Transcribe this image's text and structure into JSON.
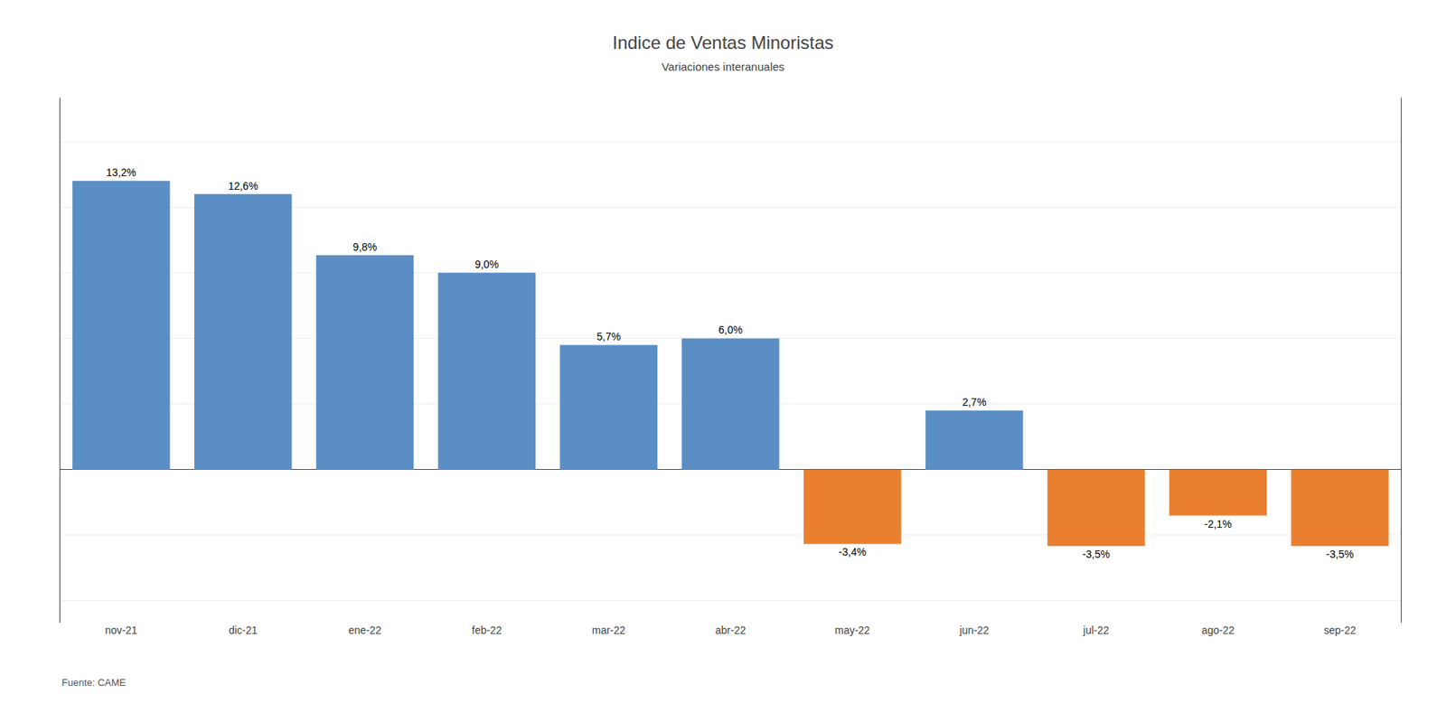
{
  "chart_data": {
    "type": "bar",
    "title": "Indice de Ventas Minoristas",
    "subtitle": "Variaciones interanuales",
    "annotations": [
      "Fuente: CAME"
    ],
    "categories": [
      "nov-21",
      "dic-21",
      "ene-22",
      "feb-22",
      "mar-22",
      "abr-22",
      "may-22",
      "jun-22",
      "jul-22",
      "ago-22",
      "sep-22"
    ],
    "values": [
      13.2,
      12.6,
      9.8,
      9.0,
      5.7,
      6.0,
      -3.4,
      2.7,
      -3.5,
      -2.1,
      -3.5
    ],
    "value_labels": [
      "13,2%",
      "12,6%",
      "9,8%",
      "9,0%",
      "5,7%",
      "6,0%",
      "-3,4%",
      "2,7%",
      "-3,5%",
      "-2,1%",
      "-3,5%"
    ],
    "colors": [
      "#5b8ec4",
      "#5b8ec4",
      "#5b8ec4",
      "#5b8ec4",
      "#5b8ec4",
      "#5b8ec4",
      "#e88030",
      "#5b8ec4",
      "#e88030",
      "#e88030",
      "#e88030"
    ],
    "ylim": [
      -7.0,
      17.0
    ],
    "yticks": [
      -6,
      -3,
      0,
      3,
      6,
      9,
      12,
      15
    ],
    "grid": true,
    "data_labels": true,
    "tick_labels": "x"
  }
}
